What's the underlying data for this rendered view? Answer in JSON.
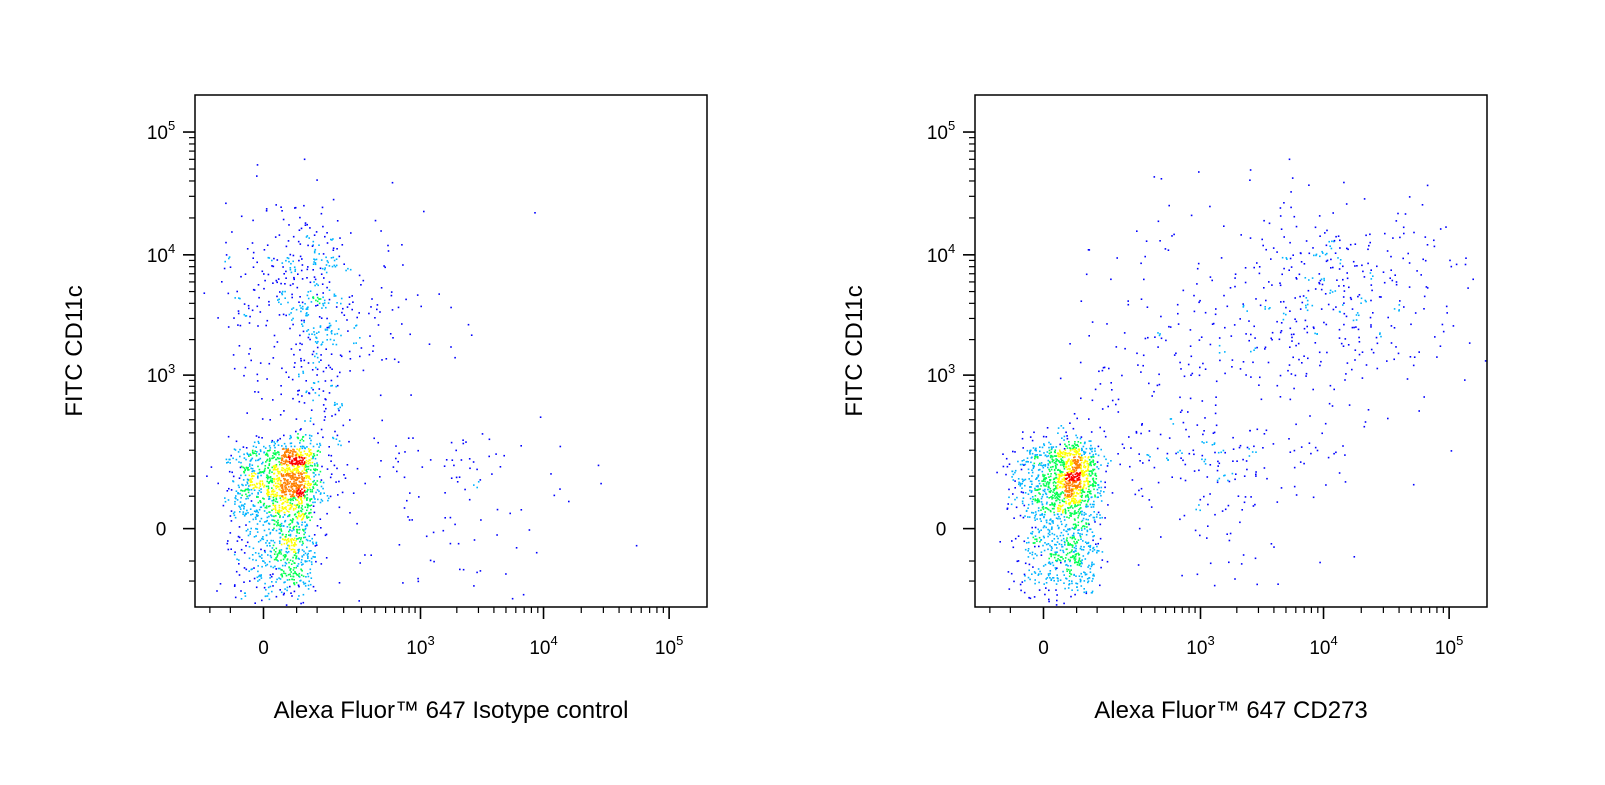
{
  "chart_data": [
    {
      "type": "scatter",
      "title": "",
      "xlabel": "Alexa Fluor™ 647 Isotype control",
      "ylabel": "FITC CD11c",
      "x_scale": "biexponential",
      "y_scale": "biexponential",
      "xlim": [
        -150,
        200000
      ],
      "ylim": [
        -200,
        200000
      ],
      "x_ticks": [
        {
          "value": 0,
          "base": "0",
          "exp": ""
        },
        {
          "value": 1000,
          "base": "10",
          "exp": "3"
        },
        {
          "value": 10000,
          "base": "10",
          "exp": "4"
        },
        {
          "value": 100000,
          "base": "10",
          "exp": "5"
        }
      ],
      "y_ticks": [
        {
          "value": 0,
          "base": "0",
          "exp": ""
        },
        {
          "value": 1000,
          "base": "10",
          "exp": "3"
        },
        {
          "value": 10000,
          "base": "10",
          "exp": "4"
        },
        {
          "value": 100000,
          "base": "10",
          "exp": "5"
        }
      ],
      "grid": false,
      "color_map": [
        "#0000ff",
        "#00b4ff",
        "#00ff50",
        "#ffff00",
        "#ff8000",
        "#ff0000"
      ],
      "populations": [
        {
          "x_center": 30,
          "y_center": 60,
          "x_spread": 35,
          "y_spread": 90,
          "fraction": 0.7
        },
        {
          "x_center": 60,
          "y_center": 6000,
          "x_spread": 60,
          "y_spread": 0.35,
          "fraction": 0.13
        },
        {
          "x_center": 90,
          "y_center": 800,
          "x_spread": 70,
          "y_spread": 0.45,
          "fraction": 0.08
        },
        {
          "x_center": 1500,
          "y_center": 80,
          "x_spread": 0.6,
          "y_spread": 120,
          "fraction": 0.05
        },
        {
          "x_center": 300,
          "y_center": 3000,
          "x_spread": 0.4,
          "y_spread": 0.4,
          "fraction": 0.04
        }
      ]
    },
    {
      "type": "scatter",
      "title": "",
      "xlabel": "Alexa Fluor™ 647 CD273",
      "ylabel": "FITC CD11c",
      "x_scale": "biexponential",
      "y_scale": "biexponential",
      "xlim": [
        -150,
        200000
      ],
      "ylim": [
        -200,
        200000
      ],
      "x_ticks": [
        {
          "value": 0,
          "base": "0",
          "exp": ""
        },
        {
          "value": 1000,
          "base": "10",
          "exp": "3"
        },
        {
          "value": 10000,
          "base": "10",
          "exp": "4"
        },
        {
          "value": 100000,
          "base": "10",
          "exp": "5"
        }
      ],
      "y_ticks": [
        {
          "value": 0,
          "base": "0",
          "exp": ""
        },
        {
          "value": 1000,
          "base": "10",
          "exp": "3"
        },
        {
          "value": 10000,
          "base": "10",
          "exp": "4"
        },
        {
          "value": 100000,
          "base": "10",
          "exp": "5"
        }
      ],
      "grid": false,
      "color_map": [
        "#0000ff",
        "#00b4ff",
        "#00ff50",
        "#ffff00",
        "#ff8000",
        "#ff0000"
      ],
      "populations": [
        {
          "x_center": 30,
          "y_center": 60,
          "x_spread": 35,
          "y_spread": 90,
          "fraction": 0.68
        },
        {
          "x_center": 15000,
          "y_center": 5000,
          "x_spread": 0.45,
          "y_spread": 0.35,
          "fraction": 0.12
        },
        {
          "x_center": 2500,
          "y_center": 3000,
          "x_spread": 0.7,
          "y_spread": 0.55,
          "fraction": 0.1
        },
        {
          "x_center": 1500,
          "y_center": 120,
          "x_spread": 0.5,
          "y_spread": 110,
          "fraction": 0.07
        },
        {
          "x_center": 200,
          "y_center": 400,
          "x_spread": 0.4,
          "y_spread": 0.5,
          "fraction": 0.03
        }
      ]
    }
  ]
}
